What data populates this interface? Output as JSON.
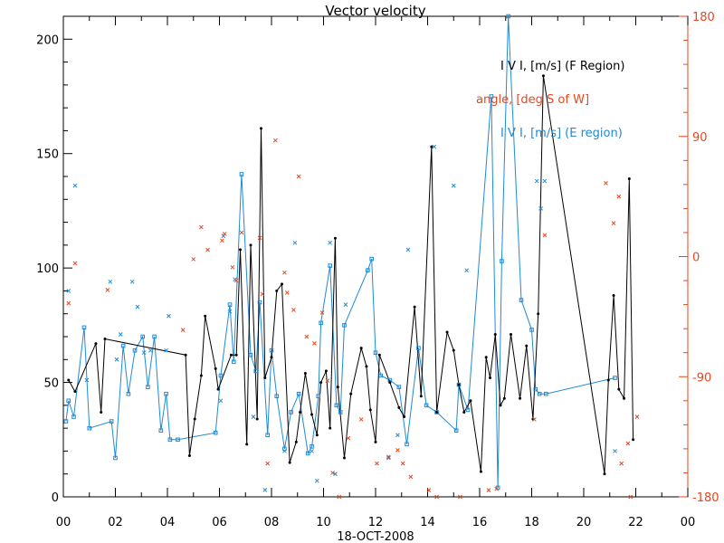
{
  "chart_data": {
    "type": "line",
    "title": "Vector velocity",
    "xlabel": "18-OCT-2008",
    "x_ticks": [
      "00",
      "02",
      "04",
      "06",
      "08",
      "10",
      "12",
      "14",
      "16",
      "18",
      "20",
      "22",
      "00"
    ],
    "xlim": [
      0,
      24
    ],
    "ylim_left": [
      0,
      210
    ],
    "y_ticks_left": [
      "0",
      "50",
      "100",
      "150",
      "200"
    ],
    "y_ticks_right": [
      "-180",
      "-90",
      "0",
      "90",
      "180"
    ],
    "ylim_right": [
      -180,
      180
    ],
    "legend": [
      {
        "label": "I V I, [m/s] (F Region)",
        "color": "#000000"
      },
      {
        "label": "angle, [deg S of W]",
        "color": "#e8461e"
      },
      {
        "label": "I V I, [m/s] (E region)",
        "color": "#1f8ad6"
      }
    ],
    "colors": {
      "f_region": "#000000",
      "angle": "#e8461e",
      "e_region": "#1f8ad6"
    },
    "series": [
      {
        "name": "I V I, [m/s] (F Region)",
        "axis": "left",
        "points": [
          [
            0.2,
            51
          ],
          [
            0.45,
            46
          ],
          [
            1.25,
            67
          ],
          [
            1.45,
            37
          ],
          [
            1.6,
            69
          ],
          [
            4.7,
            62
          ],
          [
            4.85,
            18
          ],
          [
            5.05,
            34
          ],
          [
            5.3,
            53
          ],
          [
            5.45,
            79
          ],
          [
            5.85,
            56
          ],
          [
            5.95,
            47
          ],
          [
            6.45,
            62
          ],
          [
            6.65,
            62
          ],
          [
            6.8,
            108
          ],
          [
            7.05,
            23
          ],
          [
            7.2,
            110
          ],
          [
            7.45,
            34
          ],
          [
            7.6,
            161
          ],
          [
            7.75,
            52
          ],
          [
            8.0,
            61
          ],
          [
            8.2,
            90
          ],
          [
            8.4,
            93
          ],
          [
            8.7,
            15
          ],
          [
            8.95,
            24
          ],
          [
            9.1,
            37
          ],
          [
            9.3,
            54
          ],
          [
            9.55,
            36
          ],
          [
            9.75,
            27
          ],
          [
            9.9,
            50
          ],
          [
            10.1,
            55
          ],
          [
            10.25,
            30
          ],
          [
            10.45,
            113
          ],
          [
            10.55,
            48
          ],
          [
            10.8,
            17
          ],
          [
            11.05,
            45
          ],
          [
            11.45,
            65
          ],
          [
            11.65,
            57
          ],
          [
            11.8,
            38
          ],
          [
            12.0,
            24
          ],
          [
            12.15,
            62
          ],
          [
            12.55,
            50
          ],
          [
            12.9,
            39
          ],
          [
            13.1,
            35
          ],
          [
            13.5,
            83
          ],
          [
            13.75,
            44
          ],
          [
            14.15,
            153
          ],
          [
            14.35,
            37
          ],
          [
            14.75,
            72
          ],
          [
            15.0,
            64
          ],
          [
            15.2,
            49
          ],
          [
            15.4,
            37
          ],
          [
            15.65,
            42
          ],
          [
            16.05,
            11
          ],
          [
            16.25,
            61
          ],
          [
            16.4,
            52
          ],
          [
            16.6,
            71
          ],
          [
            16.8,
            40
          ],
          [
            16.95,
            43
          ],
          [
            17.2,
            71
          ],
          [
            17.55,
            43
          ],
          [
            17.8,
            66
          ],
          [
            18.05,
            34
          ],
          [
            18.25,
            80
          ],
          [
            18.45,
            184
          ],
          [
            20.8,
            10
          ],
          [
            20.95,
            51
          ],
          [
            21.15,
            88
          ],
          [
            21.35,
            47
          ],
          [
            21.55,
            43
          ],
          [
            21.75,
            139
          ],
          [
            21.9,
            25
          ]
        ]
      },
      {
        "name": "I V I, [m/s] (E region)",
        "axis": "left",
        "points": [
          [
            0.1,
            33
          ],
          [
            0.2,
            42
          ],
          [
            0.4,
            35
          ],
          [
            0.8,
            74
          ],
          [
            1.0,
            30
          ],
          [
            1.85,
            33
          ],
          [
            2.0,
            17
          ],
          [
            2.3,
            66
          ],
          [
            2.5,
            45
          ],
          [
            2.75,
            64
          ],
          [
            3.05,
            70
          ],
          [
            3.25,
            48
          ],
          [
            3.5,
            70
          ],
          [
            3.75,
            29
          ],
          [
            3.95,
            45
          ],
          [
            4.1,
            25
          ],
          [
            4.4,
            25
          ],
          [
            5.85,
            28
          ],
          [
            6.05,
            53
          ],
          [
            6.4,
            84
          ],
          [
            6.55,
            59
          ],
          [
            6.85,
            141
          ],
          [
            7.2,
            62
          ],
          [
            7.4,
            55
          ],
          [
            7.55,
            85
          ],
          [
            7.85,
            27
          ],
          [
            8.0,
            64
          ],
          [
            8.2,
            44
          ],
          [
            8.5,
            21
          ],
          [
            8.75,
            37
          ],
          [
            9.05,
            45
          ],
          [
            9.4,
            19
          ],
          [
            9.55,
            22
          ],
          [
            9.8,
            44
          ],
          [
            9.9,
            76
          ],
          [
            10.25,
            101
          ],
          [
            10.5,
            40
          ],
          [
            10.65,
            37
          ],
          [
            10.8,
            75
          ],
          [
            11.7,
            99
          ],
          [
            11.85,
            104
          ],
          [
            12.0,
            63
          ],
          [
            12.2,
            53
          ],
          [
            12.55,
            51
          ],
          [
            12.9,
            48
          ],
          [
            13.2,
            23
          ],
          [
            13.65,
            65
          ],
          [
            13.95,
            40
          ],
          [
            14.35,
            37
          ],
          [
            15.1,
            29
          ],
          [
            15.2,
            49
          ],
          [
            15.55,
            38
          ],
          [
            16.45,
            175
          ],
          [
            16.7,
            4
          ],
          [
            16.85,
            103
          ],
          [
            17.1,
            210
          ],
          [
            17.6,
            86
          ],
          [
            18.0,
            73
          ],
          [
            18.15,
            47
          ],
          [
            18.3,
            45
          ],
          [
            18.55,
            45
          ],
          [
            21.2,
            52
          ]
        ]
      },
      {
        "name": "I V I, [m/s] (E region) scatter",
        "axis": "left",
        "points": [
          [
            0.2,
            90
          ],
          [
            0.45,
            136
          ],
          [
            0.9,
            51
          ],
          [
            1.8,
            94
          ],
          [
            2.05,
            60
          ],
          [
            2.2,
            71
          ],
          [
            2.65,
            94
          ],
          [
            2.85,
            83
          ],
          [
            3.1,
            63
          ],
          [
            3.35,
            64
          ],
          [
            3.95,
            64
          ],
          [
            4.05,
            79
          ],
          [
            6.05,
            42
          ],
          [
            6.15,
            114
          ],
          [
            6.4,
            81
          ],
          [
            6.6,
            95
          ],
          [
            7.3,
            35
          ],
          [
            7.75,
            3
          ],
          [
            8.5,
            20
          ],
          [
            8.9,
            111
          ],
          [
            9.55,
            20
          ],
          [
            9.75,
            7
          ],
          [
            10.25,
            111
          ],
          [
            10.45,
            10
          ],
          [
            10.85,
            84
          ],
          [
            12.5,
            17
          ],
          [
            12.85,
            27
          ],
          [
            13.25,
            108
          ],
          [
            14.25,
            153
          ],
          [
            15.0,
            136
          ],
          [
            15.5,
            99
          ],
          [
            18.2,
            138
          ],
          [
            18.35,
            126
          ],
          [
            18.5,
            138
          ],
          [
            21.2,
            20
          ]
        ]
      },
      {
        "name": "angle, [deg S of W]",
        "axis": "right",
        "points": [
          [
            0.2,
            -35
          ],
          [
            0.45,
            -5
          ],
          [
            1.7,
            -25
          ],
          [
            4.6,
            -55
          ],
          [
            5.0,
            -2
          ],
          [
            5.3,
            22
          ],
          [
            5.55,
            5
          ],
          [
            6.1,
            12
          ],
          [
            6.2,
            17
          ],
          [
            6.5,
            -8
          ],
          [
            6.65,
            -18
          ],
          [
            6.85,
            18
          ],
          [
            7.55,
            14
          ],
          [
            7.65,
            -28
          ],
          [
            7.85,
            -155
          ],
          [
            8.15,
            87
          ],
          [
            8.5,
            -12
          ],
          [
            8.6,
            -27
          ],
          [
            8.85,
            -40
          ],
          [
            9.05,
            60
          ],
          [
            9.35,
            -60
          ],
          [
            9.65,
            -65
          ],
          [
            9.95,
            -42
          ],
          [
            10.15,
            -93
          ],
          [
            10.35,
            -162
          ],
          [
            10.6,
            -180
          ],
          [
            10.95,
            -136
          ],
          [
            11.45,
            -122
          ],
          [
            12.05,
            -155
          ],
          [
            12.5,
            -150
          ],
          [
            12.85,
            -145
          ],
          [
            13.05,
            -155
          ],
          [
            13.35,
            -165
          ],
          [
            14.05,
            -175
          ],
          [
            14.35,
            -180
          ],
          [
            15.25,
            -180
          ],
          [
            16.35,
            -175
          ],
          [
            16.65,
            -174
          ],
          [
            18.1,
            -122
          ],
          [
            18.5,
            16
          ],
          [
            20.85,
            55
          ],
          [
            21.15,
            25
          ],
          [
            21.35,
            45
          ],
          [
            21.45,
            -155
          ],
          [
            21.7,
            -140
          ],
          [
            21.8,
            -180
          ],
          [
            22.05,
            -120
          ]
        ]
      }
    ]
  }
}
